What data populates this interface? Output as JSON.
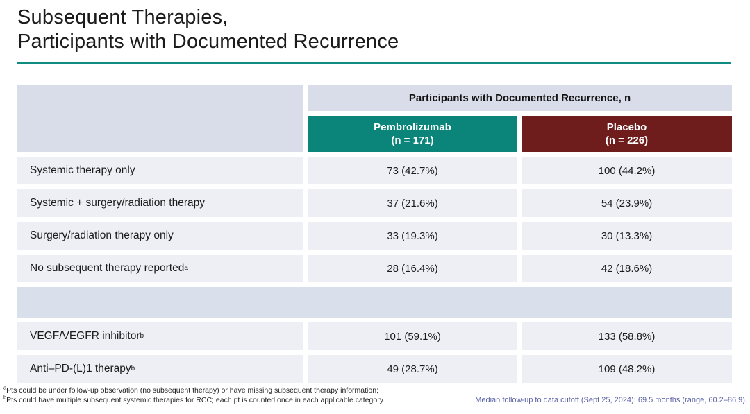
{
  "slide": {
    "title_line1": "Subsequent Therapies,",
    "title_line2": "Participants with Documented Recurrence"
  },
  "colors": {
    "accent_teal": "#0B8579",
    "placebo_red": "#6E1D1C",
    "header_band_bg": "#D9DDE9",
    "row_bg": "#EDEFF4",
    "spacer_bg": "#D9DFEB",
    "title_rule": "#0E8C82",
    "footnote_right_blue": "#5C63A8"
  },
  "table": {
    "group_header": "Participants with Documented Recurrence, n",
    "columns": [
      {
        "name": "Pembrolizumab",
        "n_label": "(n = 171)"
      },
      {
        "name": "Placebo",
        "n_label": "(n = 226)"
      }
    ],
    "rows": [
      {
        "label": "Systemic therapy only",
        "sup": "",
        "pembrolizumab": "73 (42.7%)",
        "placebo": "100 (44.2%)"
      },
      {
        "label": "Systemic + surgery/radiation therapy",
        "sup": "",
        "pembrolizumab": "37 (21.6%)",
        "placebo": "54 (23.9%)"
      },
      {
        "label": "Surgery/radiation therapy only",
        "sup": "",
        "pembrolizumab": "33 (19.3%)",
        "placebo": "30 (13.3%)"
      },
      {
        "label": "No subsequent therapy reported",
        "sup": "a",
        "pembrolizumab": "28 (16.4%)",
        "placebo": "42 (18.6%)"
      },
      {
        "spacer": true
      },
      {
        "label": "VEGF/VEGFR inhibitor",
        "sup": "b",
        "pembrolizumab": "101 (59.1%)",
        "placebo": "133 (58.8%)"
      },
      {
        "label": "Anti–PD-(L)1 therapy",
        "sup": "b",
        "pembrolizumab": "49 (28.7%)",
        "placebo": "109 (48.2%)"
      }
    ]
  },
  "footnotes": {
    "left": [
      {
        "sup": "a",
        "text": "Pts could be under follow-up observation (no subsequent therapy) or have missing subsequent therapy information;"
      },
      {
        "sup": "b",
        "text": "Pts could have multiple subsequent systemic therapies for RCC; each pt is counted once in each applicable category."
      }
    ],
    "right": "Median follow-up to data cutoff (Sept 25, 2024): 69.5 months (range, 60.2–86.9)."
  }
}
